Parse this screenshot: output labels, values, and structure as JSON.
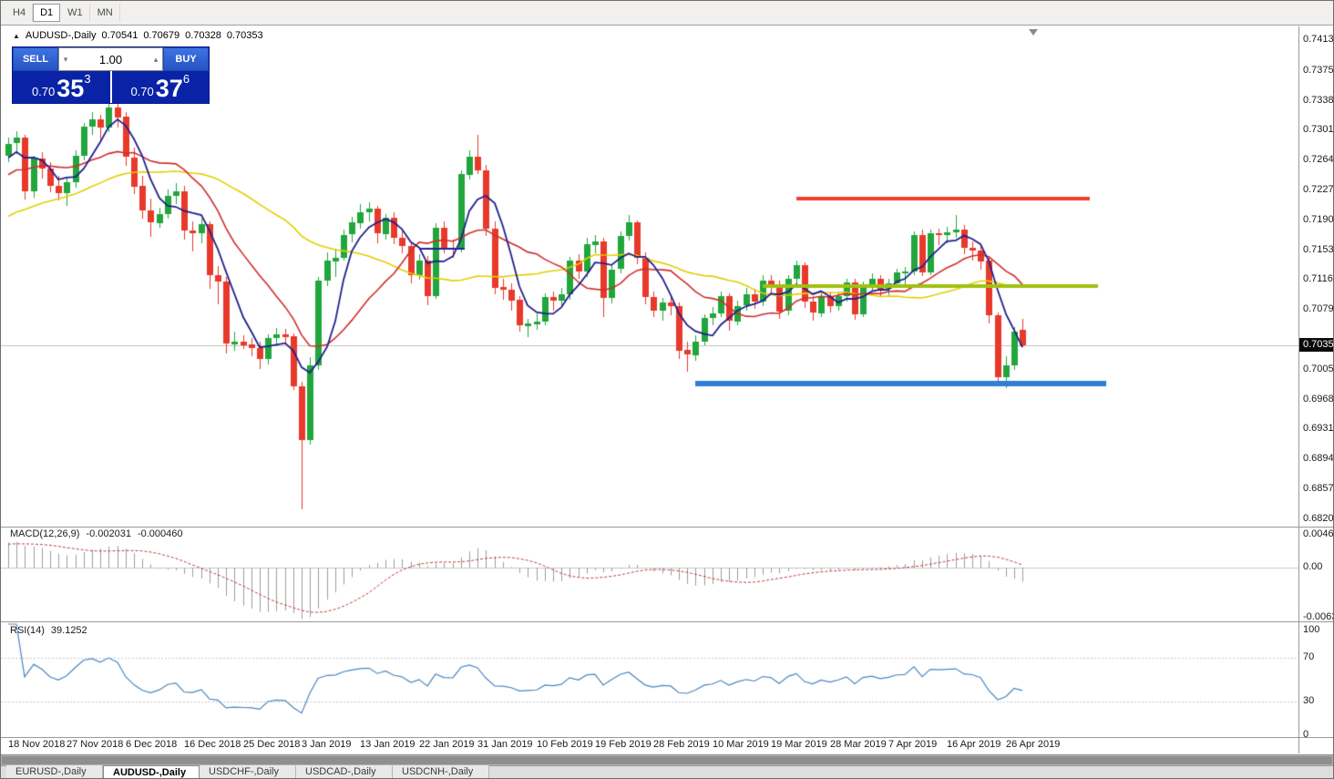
{
  "toolbar": {
    "timeframes": [
      {
        "label": "H4",
        "active": false
      },
      {
        "label": "D1",
        "active": true
      },
      {
        "label": "W1",
        "active": false
      },
      {
        "label": "MN",
        "active": false
      }
    ]
  },
  "chart_header": {
    "collapse_icon": "▲",
    "symbol": "AUDUSD-,Daily",
    "open": "0.70541",
    "high": "0.70679",
    "low": "0.70328",
    "close": "0.70353"
  },
  "trade_panel": {
    "sell_label": "SELL",
    "buy_label": "BUY",
    "volume": "1.00",
    "volume_down_icon": "▾",
    "volume_up_icon": "▴",
    "sell_price": {
      "prefix": "0.70",
      "big": "35",
      "sup": "3"
    },
    "buy_price": {
      "prefix": "0.70",
      "big": "37",
      "sup": "6"
    }
  },
  "price_axis": {
    "current": "0.70353",
    "labels": [
      "0.74130",
      "0.73750",
      "0.73380",
      "0.73010",
      "0.72640",
      "0.72270",
      "0.71900",
      "0.71530",
      "0.71160",
      "0.70790",
      "0.70050",
      "0.69680",
      "0.69310",
      "0.68940",
      "0.68570",
      "0.68200"
    ]
  },
  "macd_panel": {
    "title": "MACD(12,26,9)",
    "value_main": "-0.002031",
    "value_signal": "-0.000460",
    "scale": [
      "0.004694",
      "0.00",
      "-0.00639"
    ]
  },
  "rsi_panel": {
    "title": "RSI(14)",
    "value": "39.1252",
    "scale": [
      "100",
      "70",
      "30",
      "0"
    ]
  },
  "bottom_tabs": [
    {
      "label": "EURUSD-,Daily",
      "active": false
    },
    {
      "label": "AUDUSD-,Daily",
      "active": true
    },
    {
      "label": "USDCHF-,Daily",
      "active": false
    },
    {
      "label": "USDCAD-,Daily",
      "active": false
    },
    {
      "label": "USDCNH-,Daily",
      "active": false
    }
  ],
  "chart_data": {
    "type": "candlestick",
    "symbol": "AUDUSD-,Daily",
    "timeframe": "Daily",
    "grid": false,
    "current_price": 0.70353,
    "price_range": {
      "top": 0.74277,
      "bottom": 0.68118
    },
    "bull_color": "#21a63c",
    "bear_color": "#e8392b",
    "time_labels": [
      {
        "text": "18 Nov 2018",
        "index": 0
      },
      {
        "text": "27 Nov 2018",
        "index": 7
      },
      {
        "text": "6 Dec 2018",
        "index": 14
      },
      {
        "text": "16 Dec 2018",
        "index": 21
      },
      {
        "text": "25 Dec 2018",
        "index": 28
      },
      {
        "text": "3 Jan 2019",
        "index": 35
      },
      {
        "text": "13 Jan 2019",
        "index": 42
      },
      {
        "text": "22 Jan 2019",
        "index": 49
      },
      {
        "text": "31 Jan 2019",
        "index": 56
      },
      {
        "text": "10 Feb 2019",
        "index": 63
      },
      {
        "text": "19 Feb 2019",
        "index": 70
      },
      {
        "text": "28 Feb 2019",
        "index": 77
      },
      {
        "text": "10 Mar 2019",
        "index": 84
      },
      {
        "text": "19 Mar 2019",
        "index": 91
      },
      {
        "text": "28 Mar 2019",
        "index": 98
      },
      {
        "text": "7 Apr 2019",
        "index": 105
      },
      {
        "text": "16 Apr 2019",
        "index": 112
      },
      {
        "text": "26 Apr 2019",
        "index": 119
      }
    ],
    "candles": [
      [
        0.727,
        0.7292,
        0.7262,
        0.7285
      ],
      [
        0.7285,
        0.73,
        0.7272,
        0.7292
      ],
      [
        0.7292,
        0.7296,
        0.7216,
        0.7225
      ],
      [
        0.7225,
        0.727,
        0.7218,
        0.7266
      ],
      [
        0.7266,
        0.7274,
        0.7241,
        0.7254
      ],
      [
        0.7254,
        0.7262,
        0.7225,
        0.7233
      ],
      [
        0.7233,
        0.7245,
        0.7214,
        0.7224
      ],
      [
        0.7224,
        0.7244,
        0.7208,
        0.7237
      ],
      [
        0.7237,
        0.7276,
        0.723,
        0.727
      ],
      [
        0.727,
        0.731,
        0.7264,
        0.7306
      ],
      [
        0.7306,
        0.7324,
        0.7296,
        0.7315
      ],
      [
        0.7315,
        0.7321,
        0.7287,
        0.7305
      ],
      [
        0.7305,
        0.7337,
        0.7299,
        0.733
      ],
      [
        0.733,
        0.734,
        0.7305,
        0.7318
      ],
      [
        0.7318,
        0.7324,
        0.7258,
        0.7268
      ],
      [
        0.7268,
        0.728,
        0.7222,
        0.7232
      ],
      [
        0.7232,
        0.7245,
        0.7192,
        0.7202
      ],
      [
        0.7202,
        0.7217,
        0.717,
        0.7187
      ],
      [
        0.7187,
        0.7205,
        0.718,
        0.7198
      ],
      [
        0.7198,
        0.7228,
        0.7192,
        0.722
      ],
      [
        0.722,
        0.7236,
        0.721,
        0.7226
      ],
      [
        0.7226,
        0.7232,
        0.7165,
        0.7177
      ],
      [
        0.7177,
        0.7188,
        0.7151,
        0.7174
      ],
      [
        0.7174,
        0.7192,
        0.7162,
        0.7185
      ],
      [
        0.7185,
        0.7189,
        0.7105,
        0.7122
      ],
      [
        0.7122,
        0.7133,
        0.7086,
        0.7114
      ],
      [
        0.7114,
        0.712,
        0.7025,
        0.7037
      ],
      [
        0.7037,
        0.7052,
        0.7028,
        0.704
      ],
      [
        0.704,
        0.7048,
        0.7031,
        0.7036
      ],
      [
        0.7036,
        0.7044,
        0.7022,
        0.7032
      ],
      [
        0.7032,
        0.704,
        0.7006,
        0.7018
      ],
      [
        0.7018,
        0.7049,
        0.7012,
        0.7044
      ],
      [
        0.7044,
        0.7057,
        0.7034,
        0.7049
      ],
      [
        0.7049,
        0.7056,
        0.7038,
        0.7046
      ],
      [
        0.7046,
        0.705,
        0.698,
        0.6984
      ],
      [
        0.6984,
        0.699,
        0.6832,
        0.6917
      ],
      [
        0.6917,
        0.702,
        0.6912,
        0.701
      ],
      [
        0.701,
        0.712,
        0.7005,
        0.7115
      ],
      [
        0.7115,
        0.715,
        0.7108,
        0.714
      ],
      [
        0.714,
        0.7155,
        0.712,
        0.7144
      ],
      [
        0.7144,
        0.7178,
        0.714,
        0.7172
      ],
      [
        0.7172,
        0.7194,
        0.7162,
        0.7187
      ],
      [
        0.7187,
        0.721,
        0.718,
        0.72
      ],
      [
        0.72,
        0.7212,
        0.7188,
        0.7204
      ],
      [
        0.7204,
        0.7208,
        0.7162,
        0.7173
      ],
      [
        0.7173,
        0.7198,
        0.7166,
        0.7193
      ],
      [
        0.7193,
        0.72,
        0.716,
        0.7168
      ],
      [
        0.7168,
        0.718,
        0.715,
        0.7158
      ],
      [
        0.7158,
        0.7164,
        0.7112,
        0.7122
      ],
      [
        0.7122,
        0.7148,
        0.7116,
        0.714
      ],
      [
        0.714,
        0.7146,
        0.7085,
        0.7096
      ],
      [
        0.7096,
        0.7186,
        0.7092,
        0.7181
      ],
      [
        0.7181,
        0.7188,
        0.7148,
        0.7156
      ],
      [
        0.7156,
        0.7166,
        0.7144,
        0.7154
      ],
      [
        0.7154,
        0.7252,
        0.715,
        0.7247
      ],
      [
        0.7247,
        0.7276,
        0.724,
        0.7269
      ],
      [
        0.7269,
        0.7296,
        0.7248,
        0.7252
      ],
      [
        0.7252,
        0.7258,
        0.717,
        0.718
      ],
      [
        0.718,
        0.7188,
        0.7098,
        0.7107
      ],
      [
        0.7107,
        0.7118,
        0.7092,
        0.7104
      ],
      [
        0.7104,
        0.7112,
        0.7078,
        0.7091
      ],
      [
        0.7091,
        0.7096,
        0.7052,
        0.7059
      ],
      [
        0.7059,
        0.7068,
        0.7046,
        0.7062
      ],
      [
        0.7062,
        0.7075,
        0.7055,
        0.7065
      ],
      [
        0.7065,
        0.71,
        0.706,
        0.7095
      ],
      [
        0.7095,
        0.7102,
        0.7078,
        0.709
      ],
      [
        0.709,
        0.7106,
        0.7082,
        0.7098
      ],
      [
        0.7098,
        0.7145,
        0.7092,
        0.714
      ],
      [
        0.714,
        0.7148,
        0.7118,
        0.7126
      ],
      [
        0.7126,
        0.7168,
        0.712,
        0.716
      ],
      [
        0.716,
        0.7172,
        0.715,
        0.7164
      ],
      [
        0.7164,
        0.7168,
        0.707,
        0.7094
      ],
      [
        0.7094,
        0.7136,
        0.7088,
        0.7129
      ],
      [
        0.7129,
        0.7176,
        0.7124,
        0.717
      ],
      [
        0.717,
        0.7196,
        0.7164,
        0.7187
      ],
      [
        0.7187,
        0.719,
        0.7136,
        0.7143
      ],
      [
        0.7143,
        0.715,
        0.7086,
        0.7095
      ],
      [
        0.7095,
        0.7102,
        0.707,
        0.7078
      ],
      [
        0.7078,
        0.7094,
        0.7066,
        0.7088
      ],
      [
        0.7088,
        0.7098,
        0.7072,
        0.7084
      ],
      [
        0.7084,
        0.7088,
        0.7018,
        0.7029
      ],
      [
        0.7029,
        0.704,
        0.7003,
        0.7023
      ],
      [
        0.7023,
        0.7048,
        0.7016,
        0.704
      ],
      [
        0.704,
        0.7074,
        0.7036,
        0.7069
      ],
      [
        0.7069,
        0.7082,
        0.706,
        0.7075
      ],
      [
        0.7075,
        0.7102,
        0.707,
        0.7096
      ],
      [
        0.7096,
        0.71,
        0.7054,
        0.7065
      ],
      [
        0.7065,
        0.709,
        0.706,
        0.7084
      ],
      [
        0.7084,
        0.7106,
        0.7078,
        0.7098
      ],
      [
        0.7098,
        0.7105,
        0.708,
        0.7089
      ],
      [
        0.7089,
        0.7122,
        0.7084,
        0.7115
      ],
      [
        0.7115,
        0.7122,
        0.7098,
        0.711
      ],
      [
        0.711,
        0.7115,
        0.7068,
        0.7077
      ],
      [
        0.7077,
        0.7122,
        0.7072,
        0.7117
      ],
      [
        0.7117,
        0.714,
        0.711,
        0.7134
      ],
      [
        0.7134,
        0.7138,
        0.7082,
        0.7089
      ],
      [
        0.7089,
        0.7096,
        0.7066,
        0.7075
      ],
      [
        0.7075,
        0.7102,
        0.707,
        0.7096
      ],
      [
        0.7096,
        0.7102,
        0.7076,
        0.7084
      ],
      [
        0.7084,
        0.7102,
        0.7078,
        0.7096
      ],
      [
        0.7096,
        0.7118,
        0.709,
        0.7113
      ],
      [
        0.7113,
        0.7117,
        0.7066,
        0.7074
      ],
      [
        0.7074,
        0.7114,
        0.707,
        0.711
      ],
      [
        0.711,
        0.7124,
        0.7102,
        0.7118
      ],
      [
        0.7118,
        0.7122,
        0.7096,
        0.7105
      ],
      [
        0.7105,
        0.7118,
        0.7098,
        0.7112
      ],
      [
        0.7112,
        0.713,
        0.7106,
        0.7125
      ],
      [
        0.7125,
        0.7132,
        0.7108,
        0.7127
      ],
      [
        0.7127,
        0.7176,
        0.7122,
        0.7172
      ],
      [
        0.7172,
        0.7178,
        0.712,
        0.7126
      ],
      [
        0.7126,
        0.7178,
        0.7122,
        0.7174
      ],
      [
        0.7174,
        0.718,
        0.716,
        0.7172
      ],
      [
        0.7172,
        0.7182,
        0.7162,
        0.7175
      ],
      [
        0.7175,
        0.7196,
        0.7168,
        0.7178
      ],
      [
        0.7178,
        0.7184,
        0.7148,
        0.7156
      ],
      [
        0.7156,
        0.7164,
        0.714,
        0.7153
      ],
      [
        0.7153,
        0.716,
        0.7128,
        0.714
      ],
      [
        0.714,
        0.7146,
        0.7062,
        0.7072
      ],
      [
        0.7072,
        0.7076,
        0.6985,
        0.6995
      ],
      [
        0.6995,
        0.7022,
        0.6983,
        0.701
      ],
      [
        0.701,
        0.7058,
        0.7005,
        0.7052
      ],
      [
        0.70541,
        0.70679,
        0.70328,
        0.70353
      ]
    ],
    "moving_averages": [
      {
        "period": 34,
        "color": "#e3cf00",
        "width": 1.6
      },
      {
        "period": 13,
        "color": "#cf2e2e",
        "width": 1.6
      },
      {
        "period": 5,
        "color": "#20208c",
        "width": 1.8
      }
    ],
    "trendlines": [
      {
        "price": 0.7155,
        "i1": 49,
        "i2": 54.5,
        "color": "#23229e",
        "width": 2
      },
      {
        "price": 0.7217,
        "i1": 94,
        "i2": 129,
        "color": "#f1412e",
        "width": 4
      },
      {
        "price": 0.7108,
        "i1": 90,
        "i2": 130,
        "color": "#9fc110",
        "width": 4
      },
      {
        "price": 0.6988,
        "i1": 82,
        "i2": 131,
        "color": "#2f7fd6",
        "width": 6
      }
    ],
    "macd": {
      "fast": 12,
      "slow": 26,
      "signal": 9,
      "histogram_color": "#9c9c9c",
      "signal_color": "#c23b3b",
      "scale_max": 0.004694,
      "scale_min": -0.00639
    },
    "rsi": {
      "period": 14,
      "color": "#4a86c0",
      "levels": [
        70,
        30
      ]
    }
  }
}
